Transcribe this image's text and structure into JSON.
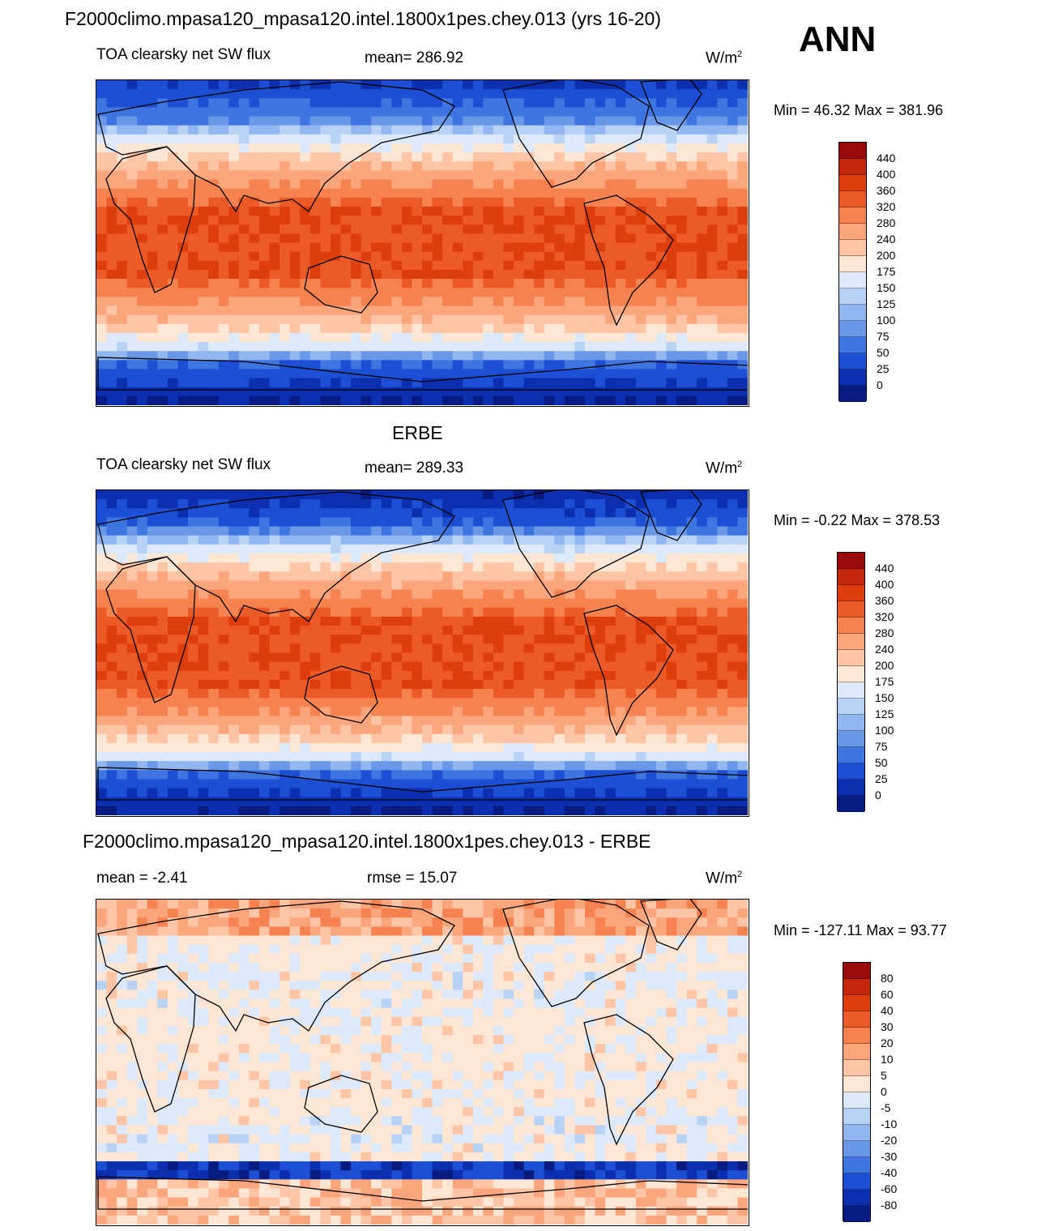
{
  "page": {
    "title": "F2000climo.mpasa120_mpasa120.intel.1800x1pes.chey.013 (yrs 16-20)",
    "season": "ANN"
  },
  "chart_data": [
    {
      "type": "heatmap",
      "title": "F2000climo.mpasa120_mpasa120.intel.1800x1pes.chey.013 (yrs 16-20)",
      "variable": "TOA clearsky net SW flux",
      "stat": "mean= 286.92",
      "units": "W/m",
      "units_sup": "2",
      "minmax": "Min =  46.32 Max = 381.96",
      "colorbar": {
        "labels": [
          "440",
          "400",
          "360",
          "320",
          "280",
          "240",
          "200",
          "175",
          "150",
          "125",
          "100",
          "75",
          "50",
          "25",
          "0"
        ],
        "colors": [
          "#9a0a0a",
          "#c4280a",
          "#de3e0c",
          "#ec5a28",
          "#f6824f",
          "#fba57c",
          "#fdc5a5",
          "#fee6d4",
          "#dbe9fb",
          "#b8d2f6",
          "#92b6f0",
          "#6a98e8",
          "#3f75e0",
          "#1c4fd4",
          "#0b2fae",
          "#071b80"
        ]
      }
    },
    {
      "type": "heatmap",
      "title": "ERBE",
      "variable": "TOA clearsky net SW flux",
      "stat": "mean= 289.33",
      "units": "W/m",
      "units_sup": "2",
      "minmax": "Min =  -0.22 Max = 378.53",
      "colorbar": {
        "labels": [
          "440",
          "400",
          "360",
          "320",
          "280",
          "240",
          "200",
          "175",
          "150",
          "125",
          "100",
          "75",
          "50",
          "25",
          "0"
        ],
        "colors": [
          "#9a0a0a",
          "#c4280a",
          "#de3e0c",
          "#ec5a28",
          "#f6824f",
          "#fba57c",
          "#fdc5a5",
          "#fee6d4",
          "#dbe9fb",
          "#b8d2f6",
          "#92b6f0",
          "#6a98e8",
          "#3f75e0",
          "#1c4fd4",
          "#0b2fae",
          "#071b80"
        ]
      }
    },
    {
      "type": "heatmap",
      "title": "F2000climo.mpasa120_mpasa120.intel.1800x1pes.chey.013 - ERBE",
      "variable": "mean =  -2.41",
      "stat": "rmse =  15.07",
      "units": "W/m",
      "units_sup": "2",
      "minmax": "Min = -127.11 Max =  93.77",
      "colorbar": {
        "labels": [
          "80",
          "60",
          "40",
          "30",
          "20",
          "10",
          "5",
          "0",
          "-5",
          "-10",
          "-20",
          "-30",
          "-40",
          "-60",
          "-80"
        ],
        "colors": [
          "#9a0a0a",
          "#c4280a",
          "#de3e0c",
          "#ec5a28",
          "#f6824f",
          "#fba57c",
          "#fdc5a5",
          "#fee6d4",
          "#dbe9fb",
          "#b8d2f6",
          "#92b6f0",
          "#6a98e8",
          "#3f75e0",
          "#1c4fd4",
          "#0b2fae",
          "#071b80"
        ]
      }
    }
  ]
}
